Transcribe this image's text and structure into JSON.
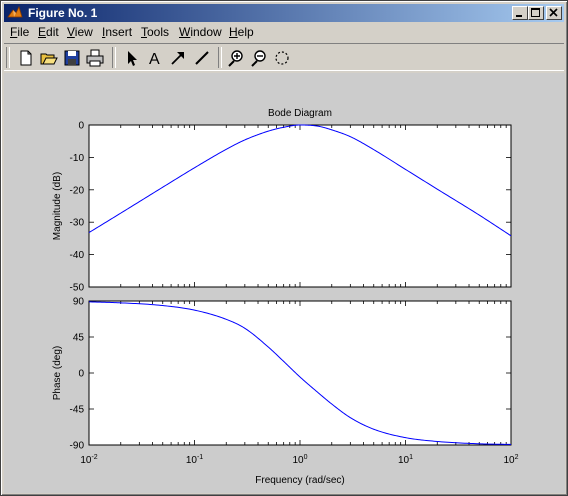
{
  "window": {
    "title": "Figure No. 1",
    "controls": {
      "minimize": "minimize-icon",
      "maximize": "maximize-icon",
      "close": "close-icon"
    }
  },
  "menu": [
    {
      "label": "File",
      "mnemonic": "F",
      "rest": "ile"
    },
    {
      "label": "Edit",
      "mnemonic": "E",
      "rest": "dit"
    },
    {
      "label": "View",
      "mnemonic": "V",
      "rest": "iew"
    },
    {
      "label": "Insert",
      "mnemonic": "I",
      "rest": "nsert"
    },
    {
      "label": "Tools",
      "mnemonic": "T",
      "rest": "ools"
    },
    {
      "label": "Window",
      "mnemonic": "W",
      "rest": "indow"
    },
    {
      "label": "Help",
      "mnemonic": "H",
      "rest": "elp"
    }
  ],
  "toolbar": {
    "buttons": [
      "new-file-icon",
      "open-folder-icon",
      "save-icon",
      "print-icon",
      "select-arrow-icon",
      "insert-text-icon",
      "insert-arrow-icon",
      "insert-line-icon",
      "zoom-in-icon",
      "zoom-out-icon",
      "rotate-3d-icon"
    ]
  },
  "chart_data": {
    "type": "line",
    "title": "Bode Diagram",
    "xlabel": "Frequency  (rad/sec)",
    "x_scale": "log",
    "xlim": [
      0.01,
      100
    ],
    "x_tick_labels": [
      "10-2",
      "10-1",
      "100",
      "101",
      "102"
    ],
    "line_color": "#0000ff",
    "panels": [
      {
        "name": "magnitude",
        "ylabel": "Magnitude (dB)",
        "ylim": [
          -50,
          0
        ],
        "y_ticks": [
          0,
          -10,
          -20,
          -30,
          -40,
          -50
        ],
        "series": {
          "x": [
            0.01,
            0.02,
            0.05,
            0.1,
            0.2,
            0.3,
            0.5,
            0.7,
            1,
            1.5,
            2,
            3,
            5,
            10,
            20,
            50,
            100
          ],
          "y": [
            -33.2,
            -27.2,
            -19.2,
            -13.2,
            -7.5,
            -4.6,
            -1.9,
            -0.7,
            0,
            -0.4,
            -1.5,
            -3.6,
            -7.6,
            -13.7,
            -19.8,
            -27.8,
            -34.2
          ]
        }
      },
      {
        "name": "phase",
        "ylabel": "Phase (deg)",
        "ylim": [
          -90,
          90
        ],
        "y_ticks": [
          90,
          45,
          0,
          -45,
          -90
        ],
        "series": {
          "x": [
            0.01,
            0.02,
            0.05,
            0.1,
            0.2,
            0.3,
            0.5,
            0.7,
            1,
            1.5,
            2,
            3,
            5,
            10,
            20,
            50,
            100
          ],
          "y": [
            88.9,
            87.7,
            84.3,
            78.6,
            67.1,
            55.9,
            32.5,
            14.5,
            -5.0,
            -25.1,
            -38.8,
            -55.8,
            -70.3,
            -80.8,
            -85.6,
            -88.5,
            -89.3
          ]
        }
      }
    ]
  }
}
